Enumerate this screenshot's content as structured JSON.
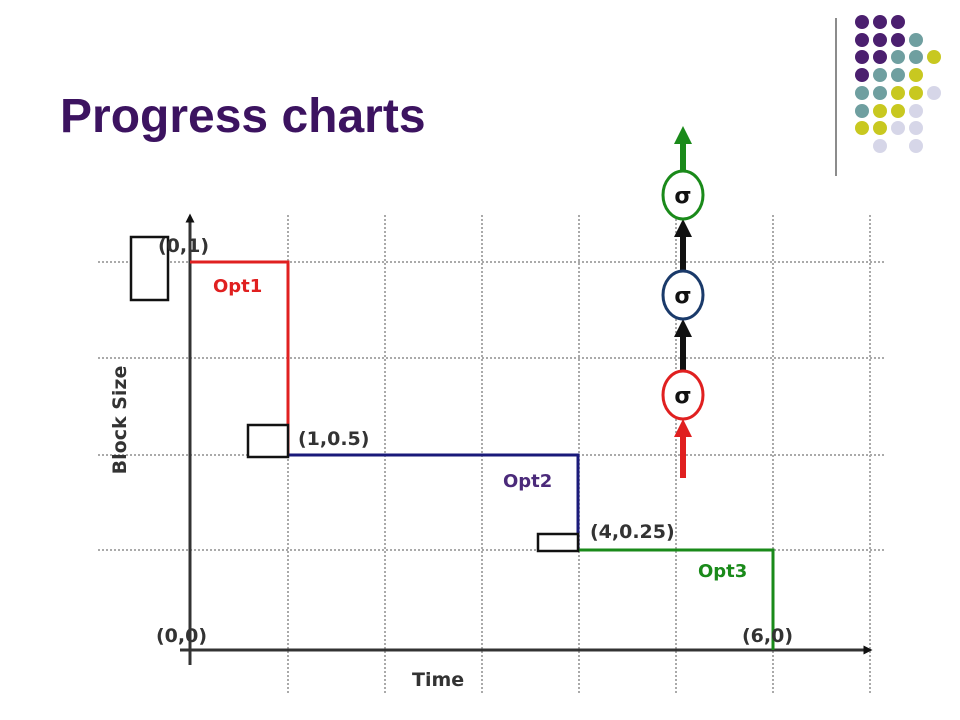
{
  "title": "Progress charts",
  "axes": {
    "y_label": "Block Size",
    "x_label": "Time"
  },
  "points": [
    "(0,1)",
    "(1,0.5)",
    "(4,0.25)",
    "(0,0)",
    "(6,0)"
  ],
  "operators": [
    "Opt1",
    "Opt2",
    "Opt3"
  ],
  "nodes": [
    "σ",
    "σ",
    "σ"
  ]
}
